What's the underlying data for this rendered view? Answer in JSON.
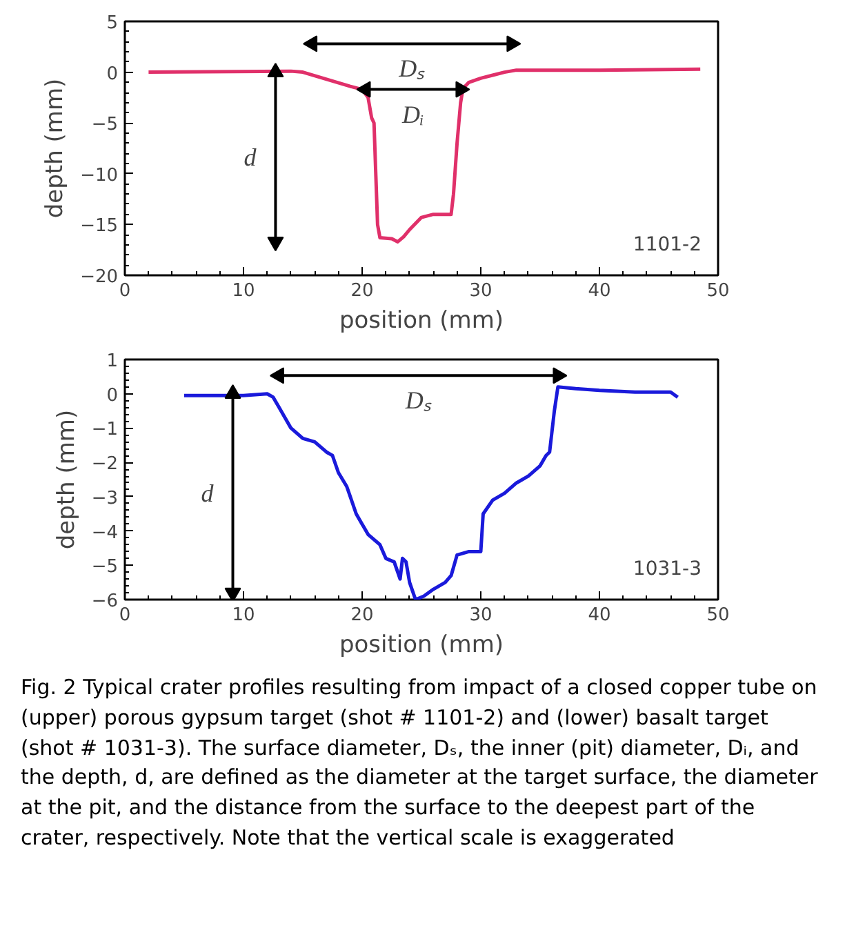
{
  "chart_data": [
    {
      "type": "line",
      "xlabel": "position (mm)",
      "ylabel": "depth (mm)",
      "xlim": [
        0,
        50
      ],
      "ylim": [
        -20,
        5
      ],
      "xticks": [
        0,
        10,
        20,
        30,
        40,
        50
      ],
      "yticks": [
        -20,
        -15,
        -10,
        -5,
        0,
        5
      ],
      "grid": false,
      "series": [
        {
          "color": "#e0306a",
          "x": [
            2,
            14,
            15,
            17,
            19,
            20,
            20.5,
            20.8,
            21,
            21.3,
            21.5,
            22.5,
            23,
            23.5,
            24,
            25,
            26,
            27.5,
            27.7,
            28,
            28.3,
            28.5,
            29,
            30,
            31,
            32,
            33,
            35,
            40,
            48.5
          ],
          "values": [
            0,
            0.1,
            0,
            -0.7,
            -1.4,
            -1.7,
            -2.5,
            -4.5,
            -5,
            -15,
            -16.3,
            -16.4,
            -16.7,
            -16.2,
            -15.5,
            -14.3,
            -14,
            -14,
            -12,
            -7,
            -3,
            -1.6,
            -1,
            -0.6,
            -0.3,
            0,
            0.2,
            0.2,
            0.2,
            0.3
          ]
        },
        {
          "color": "#000000",
          "marker": "triangle",
          "x": [
            15.8,
            32.6
          ],
          "values": [
            2.8,
            2.8
          ]
        },
        {
          "color": "#000000",
          "marker": "triangle",
          "x": [
            20.3,
            28.3
          ],
          "values": [
            -1.7,
            -1.7
          ]
        },
        {
          "color": "#000000",
          "marker": "triangle",
          "x": [
            12.7,
            12.7
          ],
          "values": [
            0,
            -16.7
          ]
        }
      ],
      "annotations": [
        "Dₛ",
        "Dᵢ",
        "d",
        "1101-2"
      ]
    },
    {
      "type": "line",
      "xlabel": "position (mm)",
      "ylabel": "depth (mm)",
      "xlim": [
        0,
        50
      ],
      "ylim": [
        -6,
        1
      ],
      "xticks": [
        0,
        10,
        20,
        30,
        40,
        50
      ],
      "yticks": [
        -6,
        -5,
        -4,
        -3,
        -2,
        -1,
        0,
        1
      ],
      "grid": false,
      "series": [
        {
          "color": "#1a1adb",
          "x": [
            5,
            10,
            12,
            12.5,
            13,
            14,
            15,
            16,
            17,
            17.5,
            18,
            18.7,
            19.5,
            20,
            20.5,
            21.5,
            22,
            22.7,
            23.2,
            23.4,
            23.7,
            24,
            24.5,
            25.2,
            26,
            27,
            27.5,
            28,
            29,
            30,
            30.2,
            31,
            32,
            33,
            34,
            35,
            35.5,
            35.8,
            36.2,
            36.5,
            38,
            40,
            43,
            46,
            46.6
          ],
          "values": [
            -0.05,
            -0.05,
            0,
            -0.1,
            -0.4,
            -1,
            -1.3,
            -1.4,
            -1.7,
            -1.8,
            -2.3,
            -2.7,
            -3.5,
            -3.8,
            -4.1,
            -4.4,
            -4.8,
            -4.9,
            -5.4,
            -4.8,
            -4.9,
            -5.5,
            -6,
            -5.9,
            -5.7,
            -5.5,
            -5.3,
            -4.7,
            -4.6,
            -4.6,
            -3.5,
            -3.1,
            -2.9,
            -2.6,
            -2.4,
            -2.1,
            -1.8,
            -1.7,
            -0.5,
            0.2,
            0.15,
            0.1,
            0.05,
            0.05,
            -0.1
          ]
        },
        {
          "color": "#000000",
          "marker": "triangle",
          "x": [
            13,
            36.5
          ],
          "values": [
            0.53,
            0.53
          ]
        },
        {
          "color": "#000000",
          "marker": "triangle",
          "x": [
            9.1,
            9.1
          ],
          "values": [
            0,
            -5.8
          ]
        }
      ],
      "annotations": [
        "Dₛ",
        "d",
        "1031-3",
        "Fig. 2  Typical crater profiles resulting from impact of a closed copper tube on (upper) porous gypsum target (shot # 1101-2) and (lower) basalt target (shot # 1031-3). The surface diameter, Dₛ, the inner (pit) diameter, Dᵢ, and the depth, d, are defined as the diameter at the target surface, the diameter at the pit, and the distance from the surface to the deepest part of the crater, respectively. Note that the vertical scale is exaggerated"
      ]
    }
  ]
}
